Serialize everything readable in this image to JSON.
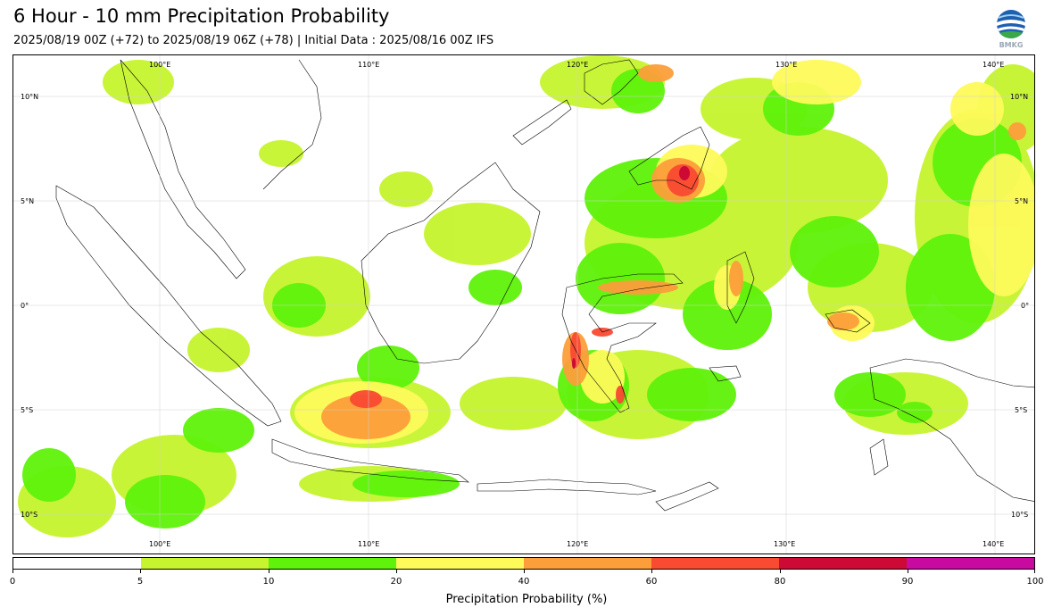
{
  "title": "6 Hour - 10 mm Precipitation Probability",
  "subtitle": "2025/08/19 00Z (+72) to 2025/08/19 06Z (+78) | Initial Data : 2025/08/16 00Z IFS",
  "logo": {
    "text": "BMKG"
  },
  "map": {
    "lon_labels": [
      "100°E",
      "110°E",
      "120°E",
      "130°E",
      "140°E"
    ],
    "lat_labels_left": [
      "10°N",
      "5°N",
      "0°",
      "5°S",
      "10°S"
    ],
    "lat_labels_right": [
      "10°N",
      "5°N",
      "0°",
      "5°S",
      "10°S"
    ],
    "grid": true
  },
  "colorbar": {
    "label": "Precipitation Probability (%)",
    "ticks": [
      "0",
      "5",
      "10",
      "20",
      "40",
      "60",
      "80",
      "90",
      "100"
    ],
    "colors": [
      "#ffffff",
      "#c6f42e",
      "#5ff20a",
      "#fdfa5a",
      "#fc9e3a",
      "#f94a32",
      "#cc0a35",
      "#c90aa0"
    ]
  }
}
